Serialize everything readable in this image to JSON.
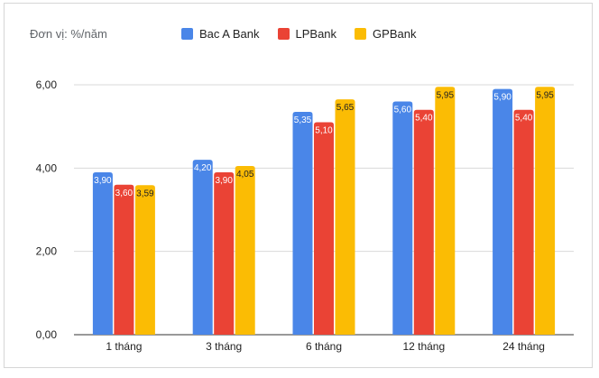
{
  "chart_data": {
    "type": "bar",
    "unit_label": "Đơn vị: %/năm",
    "categories": [
      "1 tháng",
      "3 tháng",
      "6 tháng",
      "12 tháng",
      "24 tháng"
    ],
    "series": [
      {
        "name": "Bac A Bank",
        "color": "#4a86e8",
        "values": [
          3.9,
          4.2,
          5.35,
          5.6,
          5.9
        ],
        "labels": [
          "3,90",
          "4,20",
          "5,35",
          "5,60",
          "5,90"
        ]
      },
      {
        "name": "LPBank",
        "color": "#ea4335",
        "values": [
          3.6,
          3.9,
          5.1,
          5.4,
          5.4
        ],
        "labels": [
          "3,60",
          "3,90",
          "5,10",
          "5,40",
          "5,40"
        ]
      },
      {
        "name": "GPBank",
        "color": "#fbbc04",
        "values": [
          3.59,
          4.05,
          5.65,
          5.95,
          5.95
        ],
        "labels": [
          "3,59",
          "4,05",
          "5,65",
          "5,95",
          "5,95"
        ]
      }
    ],
    "yticks": [
      0,
      2,
      4,
      6
    ],
    "ytick_labels": [
      "0,00",
      "2,00",
      "4,00",
      "6,00"
    ],
    "ylim": [
      0,
      6
    ],
    "grid": true,
    "legend_position": "top"
  }
}
